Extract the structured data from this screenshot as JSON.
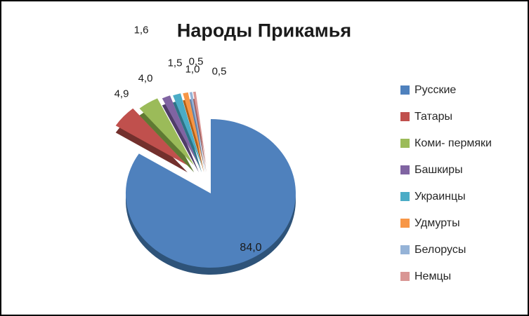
{
  "window": {
    "background_color": "#ffffff",
    "border_color": "#000000"
  },
  "chart_data": {
    "type": "pie",
    "style": "3d-exploded-pie",
    "title": "Народы Прикамья",
    "legend_position": "right",
    "value_format": "comma-decimal",
    "start_angle_deg": 0,
    "direction": "clockwise",
    "categories": [
      "Русские",
      "Татары",
      "Коми- пермяки",
      "Башкиры",
      "Украинцы",
      "Удмурты",
      "Белорусы",
      "Немцы"
    ],
    "values": [
      84.0,
      4.9,
      4.0,
      1.6,
      1.5,
      1.0,
      0.5,
      0.5
    ],
    "slices": [
      {
        "label": "Русские",
        "value": 84.0,
        "display": "84,0",
        "color": "#4F81BD",
        "dark": "#2E5379"
      },
      {
        "label": "Татары",
        "value": 4.9,
        "display": "4,9",
        "color": "#C0504D",
        "dark": "#73302D"
      },
      {
        "label": "Коми- пермяки",
        "value": 4.0,
        "display": "4,0",
        "color": "#9BBB59",
        "dark": "#5F7A33"
      },
      {
        "label": "Башкиры",
        "value": 1.6,
        "display": "1,6",
        "color": "#8064A2",
        "dark": "#4F3D68"
      },
      {
        "label": "Украинцы",
        "value": 1.5,
        "display": "1,5",
        "color": "#4BACC6",
        "dark": "#2E7386"
      },
      {
        "label": "Удмурты",
        "value": 1.0,
        "display": "1,0",
        "color": "#F79646",
        "dark": "#B26016"
      },
      {
        "label": "Белорусы",
        "value": 0.5,
        "display": "0,5",
        "color": "#95B3D7",
        "dark": "#5F7FA8"
      },
      {
        "label": "Немцы",
        "value": 0.5,
        "display": "0,5",
        "color": "#D99694",
        "dark": "#A05F5D"
      }
    ]
  }
}
